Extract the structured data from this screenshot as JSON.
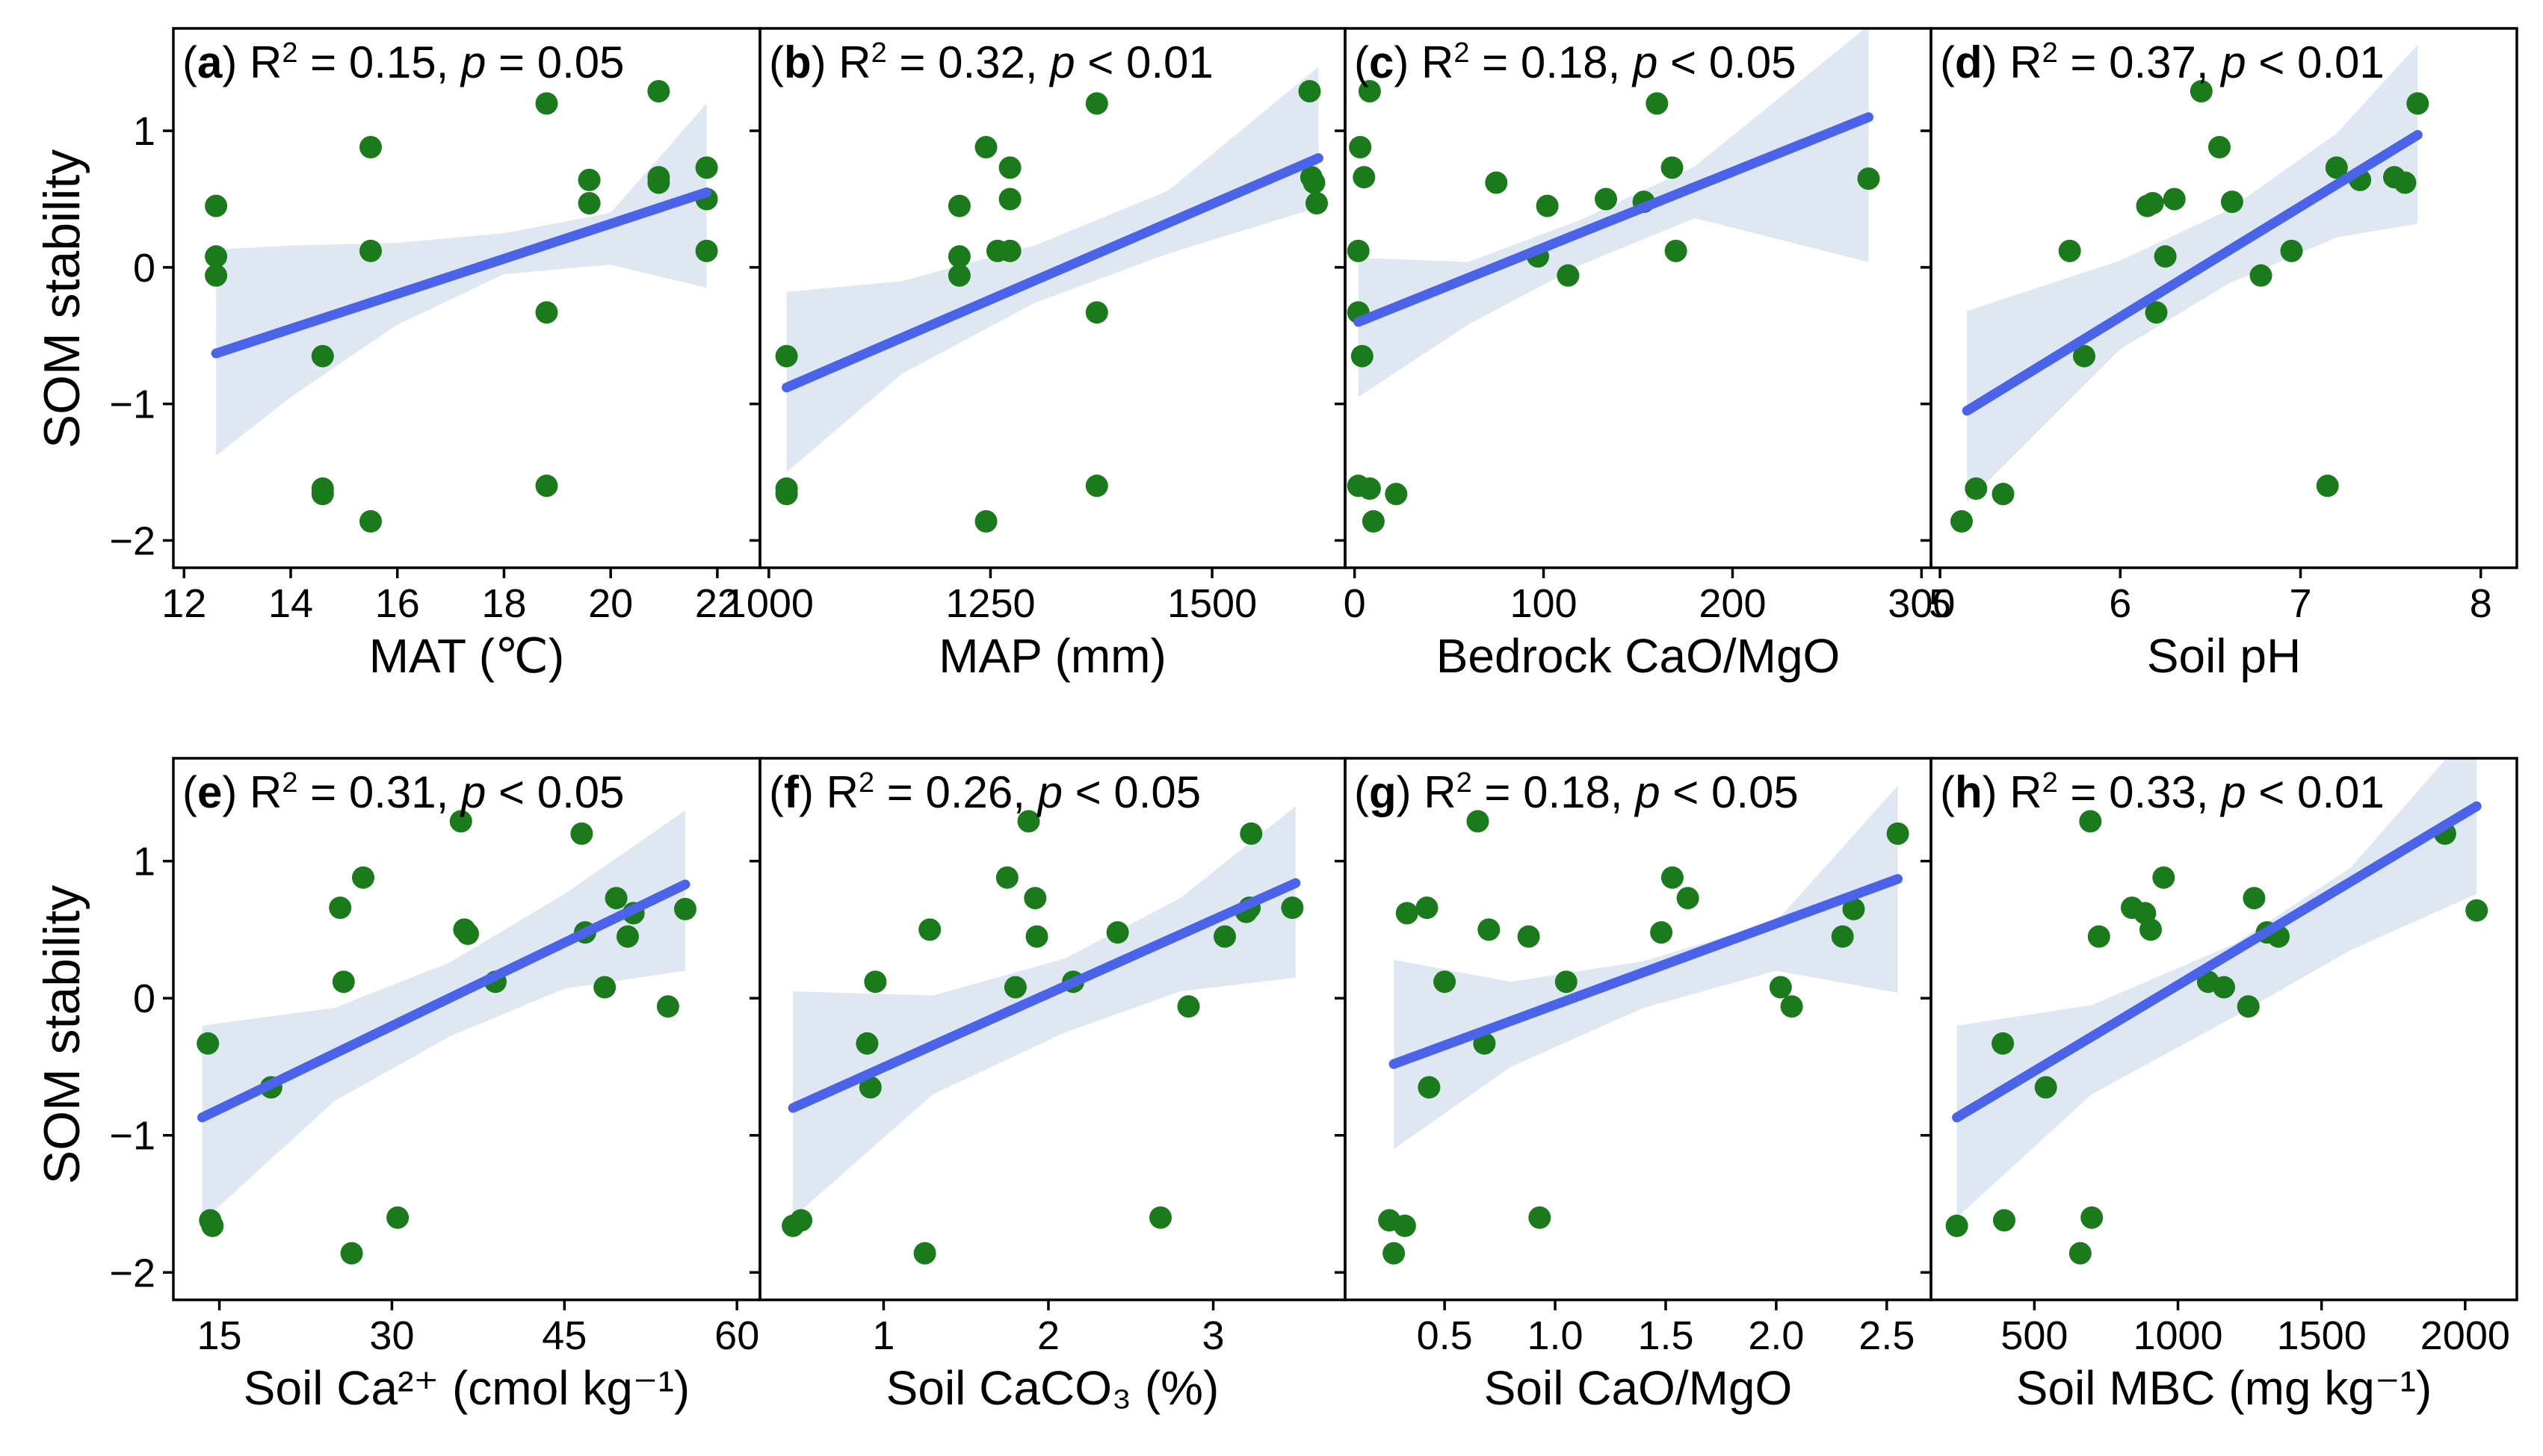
{
  "figure": {
    "ylabel": "SOM stability"
  },
  "chart_data": [
    {
      "type": "scatter",
      "panel": "a",
      "xlabel": "MAT (℃)",
      "r2": "0.15",
      "p_op": "=",
      "p_val": "0.05",
      "xlim": [
        11.8,
        22.8
      ],
      "ylim": [
        -2.2,
        1.75
      ],
      "xticks": [
        12,
        14,
        16,
        18,
        20,
        22
      ],
      "yticks": [
        -2,
        -1,
        0,
        1
      ],
      "points": [
        [
          12.6,
          0.45
        ],
        [
          12.6,
          0.08
        ],
        [
          12.6,
          -0.06
        ],
        [
          14.6,
          -0.65
        ],
        [
          14.6,
          -1.62
        ],
        [
          14.6,
          -1.66
        ],
        [
          15.5,
          0.88
        ],
        [
          15.5,
          0.12
        ],
        [
          15.5,
          -1.86
        ],
        [
          18.8,
          1.2
        ],
        [
          18.8,
          -0.33
        ],
        [
          18.8,
          -1.6
        ],
        [
          19.6,
          0.64
        ],
        [
          19.6,
          0.47
        ],
        [
          20.9,
          1.29
        ],
        [
          20.9,
          0.66
        ],
        [
          20.9,
          0.62
        ],
        [
          21.8,
          0.73
        ],
        [
          21.8,
          0.5
        ],
        [
          21.8,
          0.12
        ]
      ],
      "fit": [
        [
          12.6,
          -0.63
        ],
        [
          21.8,
          0.55
        ]
      ],
      "ci": [
        [
          12.6,
          0.13
        ],
        [
          14,
          0.16
        ],
        [
          16,
          0.18
        ],
        [
          18,
          0.25
        ],
        [
          20,
          0.4
        ],
        [
          21.8,
          1.2
        ],
        [
          21.8,
          -0.15
        ],
        [
          20,
          0.02
        ],
        [
          18,
          -0.05
        ],
        [
          16,
          -0.42
        ],
        [
          14,
          -0.95
        ],
        [
          12.6,
          -1.38
        ]
      ]
    },
    {
      "type": "scatter",
      "panel": "b",
      "xlabel": "MAP (mm)",
      "r2": "0.32",
      "p_op": "<",
      "p_val": "0.01",
      "xlim": [
        990,
        1650
      ],
      "ylim": [
        -2.2,
        1.75
      ],
      "xticks": [
        1000,
        1250,
        1500
      ],
      "yticks": [
        -2,
        -1,
        0,
        1
      ],
      "points": [
        [
          1020,
          -0.65
        ],
        [
          1020,
          -1.62
        ],
        [
          1020,
          -1.66
        ],
        [
          1215,
          0.45
        ],
        [
          1215,
          0.08
        ],
        [
          1215,
          -0.06
        ],
        [
          1245,
          0.88
        ],
        [
          1245,
          -1.86
        ],
        [
          1258,
          0.12
        ],
        [
          1272,
          0.73
        ],
        [
          1272,
          0.5
        ],
        [
          1272,
          0.12
        ],
        [
          1370,
          1.2
        ],
        [
          1370,
          -0.33
        ],
        [
          1370,
          -1.6
        ],
        [
          1610,
          1.29
        ],
        [
          1612,
          0.66
        ],
        [
          1615,
          0.62
        ],
        [
          1618,
          0.47
        ]
      ],
      "fit": [
        [
          1020,
          -0.88
        ],
        [
          1620,
          0.8
        ]
      ],
      "ci": [
        [
          1020,
          -0.18
        ],
        [
          1150,
          -0.1
        ],
        [
          1300,
          0.16
        ],
        [
          1450,
          0.56
        ],
        [
          1620,
          1.47
        ],
        [
          1620,
          0.44
        ],
        [
          1450,
          0.1
        ],
        [
          1300,
          -0.26
        ],
        [
          1150,
          -0.78
        ],
        [
          1020,
          -1.5
        ]
      ]
    },
    {
      "type": "scatter",
      "panel": "c",
      "xlabel": "Bedrock CaO/MgO",
      "r2": "0.18",
      "p_op": "<",
      "p_val": "0.05",
      "xlim": [
        -5,
        305
      ],
      "ylim": [
        -2.2,
        1.75
      ],
      "xticks": [
        0,
        100,
        200,
        300
      ],
      "yticks": [
        -2,
        -1,
        0,
        1
      ],
      "points": [
        [
          8,
          1.29
        ],
        [
          3,
          0.88
        ],
        [
          5,
          0.66
        ],
        [
          2,
          0.12
        ],
        [
          2,
          -0.33
        ],
        [
          4,
          -0.65
        ],
        [
          2,
          -1.6
        ],
        [
          8,
          -1.62
        ],
        [
          10,
          -1.86
        ],
        [
          22,
          -1.66
        ],
        [
          75,
          0.62
        ],
        [
          97,
          0.08
        ],
        [
          102,
          0.45
        ],
        [
          113,
          -0.06
        ],
        [
          133,
          0.5
        ],
        [
          153,
          0.48
        ],
        [
          160,
          1.2
        ],
        [
          168,
          0.73
        ],
        [
          170,
          0.12
        ],
        [
          272,
          0.65
        ]
      ],
      "fit": [
        [
          2,
          -0.4
        ],
        [
          272,
          1.1
        ]
      ],
      "ci": [
        [
          2,
          0.07
        ],
        [
          60,
          0.04
        ],
        [
          120,
          0.35
        ],
        [
          180,
          0.74
        ],
        [
          272,
          1.77
        ],
        [
          272,
          0.04
        ],
        [
          180,
          0.36
        ],
        [
          120,
          0.02
        ],
        [
          60,
          -0.42
        ],
        [
          2,
          -0.95
        ]
      ]
    },
    {
      "type": "scatter",
      "panel": "d",
      "xlabel": "Soil pH",
      "r2": "0.37",
      "p_op": "<",
      "p_val": "0.01",
      "xlim": [
        4.95,
        8.2
      ],
      "ylim": [
        -2.2,
        1.75
      ],
      "xticks": [
        5,
        6,
        7,
        8
      ],
      "yticks": [
        -2,
        -1,
        0,
        1
      ],
      "points": [
        [
          5.12,
          -1.86
        ],
        [
          5.2,
          -1.62
        ],
        [
          5.35,
          -1.66
        ],
        [
          5.72,
          0.12
        ],
        [
          5.8,
          -0.65
        ],
        [
          6.15,
          0.45
        ],
        [
          6.18,
          0.47
        ],
        [
          6.2,
          -0.33
        ],
        [
          6.25,
          0.08
        ],
        [
          6.3,
          0.5
        ],
        [
          6.45,
          1.29
        ],
        [
          6.55,
          0.88
        ],
        [
          6.62,
          0.48
        ],
        [
          6.78,
          -0.06
        ],
        [
          6.95,
          0.12
        ],
        [
          7.15,
          -1.6
        ],
        [
          7.2,
          0.73
        ],
        [
          7.33,
          0.64
        ],
        [
          7.52,
          0.66
        ],
        [
          7.58,
          0.62
        ],
        [
          7.65,
          1.2
        ]
      ],
      "fit": [
        [
          5.15,
          -1.05
        ],
        [
          7.65,
          0.97
        ]
      ],
      "ci": [
        [
          5.15,
          -0.32
        ],
        [
          6,
          0.05
        ],
        [
          6.6,
          0.42
        ],
        [
          7.2,
          0.98
        ],
        [
          7.65,
          1.63
        ],
        [
          7.65,
          0.32
        ],
        [
          7.2,
          0.22
        ],
        [
          6.6,
          -0.12
        ],
        [
          6,
          -0.6
        ],
        [
          5.15,
          -1.72
        ]
      ]
    },
    {
      "type": "scatter",
      "panel": "e",
      "xlabel": "Soil Ca²⁺ (cmol kg⁻¹)",
      "r2": "0.31",
      "p_op": "<",
      "p_val": "0.05",
      "xlim": [
        11,
        62
      ],
      "ylim": [
        -2.2,
        1.75
      ],
      "xticks": [
        15,
        30,
        45,
        60
      ],
      "yticks": [
        -2,
        -1,
        0,
        1
      ],
      "points": [
        [
          14,
          -0.33
        ],
        [
          14.2,
          -1.62
        ],
        [
          14.4,
          -1.66
        ],
        [
          19.5,
          -0.65
        ],
        [
          25.5,
          0.66
        ],
        [
          25.8,
          0.12
        ],
        [
          26.5,
          -1.86
        ],
        [
          27.5,
          0.88
        ],
        [
          30.5,
          -1.6
        ],
        [
          36,
          1.29
        ],
        [
          36.3,
          0.5
        ],
        [
          36.6,
          0.47
        ],
        [
          39,
          0.12
        ],
        [
          46.5,
          1.2
        ],
        [
          46.8,
          0.48
        ],
        [
          48.5,
          0.08
        ],
        [
          49.5,
          0.73
        ],
        [
          50.5,
          0.45
        ],
        [
          51,
          0.62
        ],
        [
          54,
          -0.06
        ],
        [
          55.5,
          0.65
        ]
      ],
      "fit": [
        [
          13.5,
          -0.87
        ],
        [
          55.5,
          0.83
        ]
      ],
      "ci": [
        [
          13.5,
          -0.2
        ],
        [
          25,
          -0.07
        ],
        [
          35,
          0.26
        ],
        [
          45,
          0.76
        ],
        [
          55.5,
          1.37
        ],
        [
          55.5,
          0.2
        ],
        [
          45,
          0.07
        ],
        [
          35,
          -0.28
        ],
        [
          25,
          -0.75
        ],
        [
          13.5,
          -1.63
        ]
      ]
    },
    {
      "type": "scatter",
      "panel": "f",
      "xlabel": "Soil CaCO₃ (%)",
      "r2": "0.26",
      "p_op": "<",
      "p_val": "0.05",
      "xlim": [
        0.25,
        3.8
      ],
      "ylim": [
        -2.2,
        1.75
      ],
      "xticks": [
        1,
        2,
        3
      ],
      "yticks": [
        -2,
        -1,
        0,
        1
      ],
      "points": [
        [
          0.45,
          -1.66
        ],
        [
          0.5,
          -1.62
        ],
        [
          0.9,
          -0.33
        ],
        [
          0.92,
          -0.65
        ],
        [
          0.95,
          0.12
        ],
        [
          1.25,
          -1.86
        ],
        [
          1.28,
          0.5
        ],
        [
          1.75,
          0.88
        ],
        [
          1.8,
          0.08
        ],
        [
          1.88,
          1.29
        ],
        [
          1.92,
          0.73
        ],
        [
          1.93,
          0.45
        ],
        [
          2.15,
          0.12
        ],
        [
          2.42,
          0.48
        ],
        [
          2.68,
          -1.6
        ],
        [
          2.85,
          -0.06
        ],
        [
          3.07,
          0.45
        ],
        [
          3.2,
          0.63
        ],
        [
          3.22,
          0.66
        ],
        [
          3.23,
          1.2
        ],
        [
          3.48,
          0.66
        ]
      ],
      "fit": [
        [
          0.45,
          -0.8
        ],
        [
          3.5,
          0.84
        ]
      ],
      "ci": [
        [
          0.45,
          0.05
        ],
        [
          1.3,
          0.02
        ],
        [
          2.1,
          0.29
        ],
        [
          2.8,
          0.73
        ],
        [
          3.5,
          1.4
        ],
        [
          3.5,
          0.15
        ],
        [
          2.8,
          0.05
        ],
        [
          2.1,
          -0.25
        ],
        [
          1.3,
          -0.7
        ],
        [
          0.45,
          -1.6
        ]
      ]
    },
    {
      "type": "scatter",
      "panel": "g",
      "xlabel": "Soil CaO/MgO",
      "r2": "0.18",
      "p_op": "<",
      "p_val": "0.05",
      "xlim": [
        0.05,
        2.7
      ],
      "ylim": [
        -2.2,
        1.75
      ],
      "xticks": [
        0.5,
        1.0,
        1.5,
        2.0,
        2.5
      ],
      "yticks": [
        -2,
        -1,
        0,
        1
      ],
      "points": [
        [
          0.25,
          -1.62
        ],
        [
          0.27,
          -1.86
        ],
        [
          0.32,
          -1.66
        ],
        [
          0.33,
          0.62
        ],
        [
          0.42,
          0.66
        ],
        [
          0.43,
          -0.65
        ],
        [
          0.5,
          0.12
        ],
        [
          0.65,
          1.29
        ],
        [
          0.68,
          -0.33
        ],
        [
          0.7,
          0.5
        ],
        [
          0.88,
          0.45
        ],
        [
          0.93,
          -1.6
        ],
        [
          1.05,
          0.12
        ],
        [
          1.48,
          0.48
        ],
        [
          1.53,
          0.88
        ],
        [
          1.6,
          0.73
        ],
        [
          2.02,
          0.08
        ],
        [
          2.07,
          -0.06
        ],
        [
          2.3,
          0.45
        ],
        [
          2.35,
          0.65
        ],
        [
          2.55,
          1.2
        ]
      ],
      "fit": [
        [
          0.27,
          -0.48
        ],
        [
          2.55,
          0.87
        ]
      ],
      "ci": [
        [
          0.27,
          0.28
        ],
        [
          0.8,
          0.12
        ],
        [
          1.4,
          0.27
        ],
        [
          2,
          0.56
        ],
        [
          2.55,
          1.55
        ],
        [
          2.55,
          0.04
        ],
        [
          2,
          0.2
        ],
        [
          1.4,
          -0.07
        ],
        [
          0.8,
          -0.5
        ],
        [
          0.27,
          -1.1
        ]
      ]
    },
    {
      "type": "scatter",
      "panel": "h",
      "xlabel": "Soil MBC (mg kg⁻¹)",
      "r2": "0.33",
      "p_op": "<",
      "p_val": "0.01",
      "xlim": [
        140,
        2180
      ],
      "ylim": [
        -2.2,
        1.75
      ],
      "xticks": [
        500,
        1000,
        1500,
        2000
      ],
      "yticks": [
        -2,
        -1,
        0,
        1
      ],
      "points": [
        [
          230,
          -1.66
        ],
        [
          390,
          -0.33
        ],
        [
          395,
          -1.62
        ],
        [
          540,
          -0.65
        ],
        [
          660,
          -1.86
        ],
        [
          695,
          1.29
        ],
        [
          700,
          -1.6
        ],
        [
          725,
          0.45
        ],
        [
          840,
          0.66
        ],
        [
          885,
          0.62
        ],
        [
          905,
          0.5
        ],
        [
          950,
          0.88
        ],
        [
          1105,
          0.12
        ],
        [
          1160,
          0.08
        ],
        [
          1245,
          -0.06
        ],
        [
          1265,
          0.73
        ],
        [
          1310,
          0.48
        ],
        [
          1350,
          0.45
        ],
        [
          1930,
          1.2
        ],
        [
          2040,
          0.64
        ]
      ],
      "fit": [
        [
          230,
          -0.87
        ],
        [
          2040,
          1.4
        ]
      ],
      "ci": [
        [
          230,
          -0.2
        ],
        [
          700,
          -0.05
        ],
        [
          1200,
          0.4
        ],
        [
          1600,
          0.95
        ],
        [
          2040,
          2.0
        ],
        [
          2040,
          0.76
        ],
        [
          1600,
          0.35
        ],
        [
          1200,
          -0.13
        ],
        [
          700,
          -0.7
        ],
        [
          230,
          -1.6
        ]
      ]
    }
  ]
}
